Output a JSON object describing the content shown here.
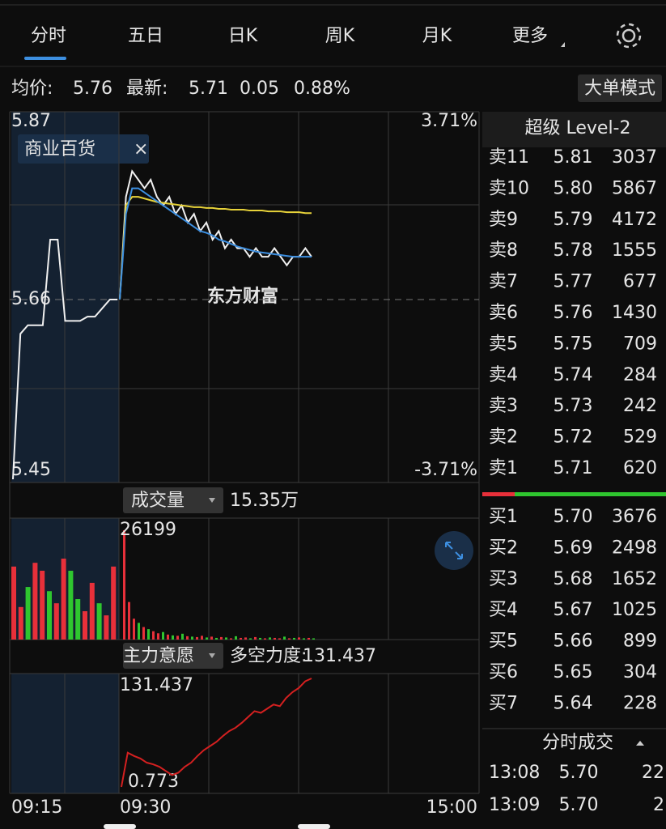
{
  "tabs": [
    "分时",
    "五日",
    "日K",
    "周K",
    "月K",
    "更多"
  ],
  "info": {
    "avg_label": "均价:",
    "avg": "5.76",
    "latest_label": "最新:",
    "latest": "5.71",
    "change": "0.05",
    "pct": "0.88%",
    "button": "大单模式"
  },
  "price_chart": {
    "ylim": [
      5.45,
      5.87
    ],
    "mid": 5.66,
    "top_pct": "3.71%",
    "bottom_pct": "-3.71%",
    "tag": "商业百货",
    "watermark": "东方财富",
    "pre_values": [
      5.45,
      5.62,
      5.63,
      5.63,
      5.63,
      5.73,
      5.73,
      5.635,
      5.635,
      5.635,
      5.64,
      5.64,
      5.65,
      5.66,
      5.66
    ],
    "series": [
      {
        "color": "#f0f0f0",
        "values": [
          5.66,
          5.78,
          5.81,
          5.8,
          5.79,
          5.8,
          5.78,
          5.77,
          5.78,
          5.76,
          5.77,
          5.75,
          5.76,
          5.74,
          5.75,
          5.73,
          5.74,
          5.72,
          5.73,
          5.72,
          5.72,
          5.71,
          5.72,
          5.71,
          5.71,
          5.72,
          5.71,
          5.7,
          5.71,
          5.71,
          5.72,
          5.71
        ]
      },
      {
        "color": "#e7d23a",
        "values": [
          5.66,
          5.77,
          5.78,
          5.78,
          5.778,
          5.776,
          5.774,
          5.773,
          5.772,
          5.771,
          5.77,
          5.769,
          5.768,
          5.768,
          5.767,
          5.767,
          5.766,
          5.766,
          5.765,
          5.765,
          5.765,
          5.764,
          5.764,
          5.764,
          5.763,
          5.763,
          5.763,
          5.762,
          5.762,
          5.762,
          5.761,
          5.761
        ]
      },
      {
        "color": "#3d8fe0",
        "values": [
          5.66,
          5.76,
          5.79,
          5.79,
          5.785,
          5.78,
          5.775,
          5.77,
          5.765,
          5.76,
          5.755,
          5.75,
          5.745,
          5.74,
          5.738,
          5.735,
          5.73,
          5.728,
          5.725,
          5.722,
          5.72,
          5.718,
          5.716,
          5.715,
          5.714,
          5.713,
          5.712,
          5.711,
          5.71,
          5.71,
          5.71,
          5.71
        ]
      }
    ]
  },
  "volume": {
    "label": "成交量",
    "total": "15.35万",
    "max": 26199,
    "colors": {
      "up": "#e8303a",
      "down": "#2fc62f"
    },
    "pre_values": [
      17500,
      7800,
      12600,
      18400,
      16500,
      11600,
      8700,
      19400,
      16500,
      9700,
      6800,
      13600,
      8700,
      5800,
      17500
    ],
    "pre_up": [
      true,
      true,
      false,
      true,
      true,
      false,
      true,
      true,
      false,
      false,
      true,
      true,
      false,
      true,
      true
    ],
    "values": [
      26199,
      9000,
      5000,
      4000,
      3000,
      2500,
      2000,
      1500,
      1800,
      1200,
      1000,
      900,
      1400,
      800,
      700,
      600,
      900,
      500,
      700,
      400,
      600,
      500,
      300,
      800,
      400,
      500,
      300,
      600,
      400,
      300,
      500,
      400,
      300,
      700,
      300,
      400,
      500,
      300,
      400,
      300
    ],
    "up": [
      true,
      true,
      true,
      false,
      true,
      false,
      true,
      true,
      false,
      true,
      false,
      true,
      false,
      true,
      false,
      true,
      true,
      false,
      true,
      false,
      true,
      false,
      true,
      false,
      true,
      true,
      false,
      true,
      false,
      true,
      false,
      true,
      true,
      false,
      true,
      false,
      true,
      false,
      true,
      false
    ]
  },
  "force": {
    "label": "主力意愿",
    "metric_label": "多空力度:",
    "metric": "131.437",
    "ylim": [
      0.773,
      131.437
    ],
    "values": [
      0.773,
      42,
      38,
      35,
      30,
      28,
      25,
      20,
      15,
      18,
      25,
      30,
      38,
      45,
      50,
      55,
      62,
      68,
      72,
      78,
      85,
      92,
      90,
      95,
      100,
      98,
      108,
      115,
      120,
      128,
      131.437
    ]
  },
  "x_labels": [
    "09:15",
    "09:30",
    "15:00"
  ],
  "order_book": {
    "title": "超级 Level-2",
    "sell": [
      {
        "label": "卖11",
        "price": "5.81",
        "volume": "3037"
      },
      {
        "label": "卖10",
        "price": "5.80",
        "volume": "5867"
      },
      {
        "label": "卖9",
        "price": "5.79",
        "volume": "4172"
      },
      {
        "label": "卖8",
        "price": "5.78",
        "volume": "1555"
      },
      {
        "label": "卖7",
        "price": "5.77",
        "volume": "677"
      },
      {
        "label": "卖6",
        "price": "5.76",
        "volume": "1430"
      },
      {
        "label": "卖5",
        "price": "5.75",
        "volume": "709"
      },
      {
        "label": "卖4",
        "price": "5.74",
        "volume": "284"
      },
      {
        "label": "卖3",
        "price": "5.73",
        "volume": "242"
      },
      {
        "label": "卖2",
        "price": "5.72",
        "volume": "529"
      },
      {
        "label": "卖1",
        "price": "5.71",
        "volume": "620"
      }
    ],
    "buy": [
      {
        "label": "买1",
        "price": "5.70",
        "volume": "3676"
      },
      {
        "label": "买2",
        "price": "5.69",
        "volume": "2498"
      },
      {
        "label": "买3",
        "price": "5.68",
        "volume": "1652"
      },
      {
        "label": "买4",
        "price": "5.67",
        "volume": "1025"
      },
      {
        "label": "买5",
        "price": "5.66",
        "volume": "899"
      },
      {
        "label": "买6",
        "price": "5.65",
        "volume": "304"
      },
      {
        "label": "买7",
        "price": "5.64",
        "volume": "228"
      }
    ]
  },
  "trades": {
    "title": "分时成交",
    "rows": [
      {
        "time": "13:08",
        "price": "5.70",
        "volume": "22"
      },
      {
        "time": "13:09",
        "price": "5.70",
        "volume": "2"
      }
    ]
  }
}
